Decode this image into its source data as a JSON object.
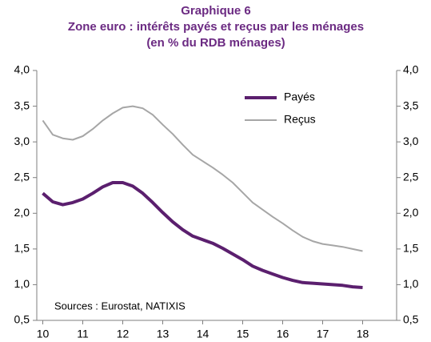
{
  "chart_data": {
    "type": "line",
    "title": "Graphique 6",
    "subtitle": "Zone euro : intérêts payés et reçus par les ménages",
    "subtitle2": "(en % du RDB ménages)",
    "annotation": "Sources : Eurostat, NATIXIS",
    "x": [
      10,
      10.25,
      10.5,
      10.75,
      11,
      11.25,
      11.5,
      11.75,
      12,
      12.25,
      12.5,
      12.75,
      13,
      13.25,
      13.5,
      13.75,
      14,
      14.25,
      14.5,
      14.75,
      15,
      15.25,
      15.5,
      15.75,
      16,
      16.25,
      16.5,
      16.75,
      17,
      17.25,
      17.5,
      17.75,
      18
    ],
    "series": [
      {
        "name": "Payés",
        "color": "#5b1f6e",
        "width": 4,
        "values": [
          2.28,
          2.16,
          2.12,
          2.15,
          2.2,
          2.28,
          2.37,
          2.43,
          2.43,
          2.38,
          2.28,
          2.15,
          2.01,
          1.88,
          1.77,
          1.68,
          1.63,
          1.58,
          1.51,
          1.43,
          1.35,
          1.26,
          1.2,
          1.15,
          1.1,
          1.06,
          1.03,
          1.02,
          1.01,
          1.0,
          0.99,
          0.97,
          0.96
        ]
      },
      {
        "name": "Reçus",
        "color": "#a6a6a6",
        "width": 2,
        "values": [
          3.3,
          3.1,
          3.05,
          3.03,
          3.08,
          3.18,
          3.3,
          3.4,
          3.48,
          3.5,
          3.47,
          3.38,
          3.24,
          3.11,
          2.96,
          2.82,
          2.73,
          2.64,
          2.54,
          2.43,
          2.29,
          2.15,
          2.05,
          1.95,
          1.86,
          1.76,
          1.67,
          1.61,
          1.57,
          1.55,
          1.53,
          1.5,
          1.47
        ]
      }
    ],
    "xlim": [
      9.85,
      18.85
    ],
    "xticks": [
      10,
      11,
      12,
      13,
      14,
      15,
      16,
      17,
      18
    ],
    "ylim": [
      0.5,
      4.0
    ],
    "yticks": [
      {
        "value": 0.5,
        "label": "0,5"
      },
      {
        "value": 1.0,
        "label": "1,0"
      },
      {
        "value": 1.5,
        "label": "1,5"
      },
      {
        "value": 2.0,
        "label": "2,0"
      },
      {
        "value": 2.5,
        "label": "2,5"
      },
      {
        "value": 3.0,
        "label": "3,0"
      },
      {
        "value": 3.5,
        "label": "3,5"
      },
      {
        "value": 4.0,
        "label": "4,0"
      }
    ],
    "y2lim": [
      0.5,
      4.0
    ],
    "y2ticks": [
      {
        "value": 0.5,
        "label": "0,5"
      },
      {
        "value": 1.0,
        "label": "1,0"
      },
      {
        "value": 1.5,
        "label": "1,5"
      },
      {
        "value": 2.0,
        "label": "2,0"
      },
      {
        "value": 2.5,
        "label": "2,5"
      },
      {
        "value": 3.0,
        "label": "3,0"
      },
      {
        "value": 3.5,
        "label": "3,5"
      },
      {
        "value": 4.0,
        "label": "4,0"
      }
    ],
    "grid": false
  }
}
